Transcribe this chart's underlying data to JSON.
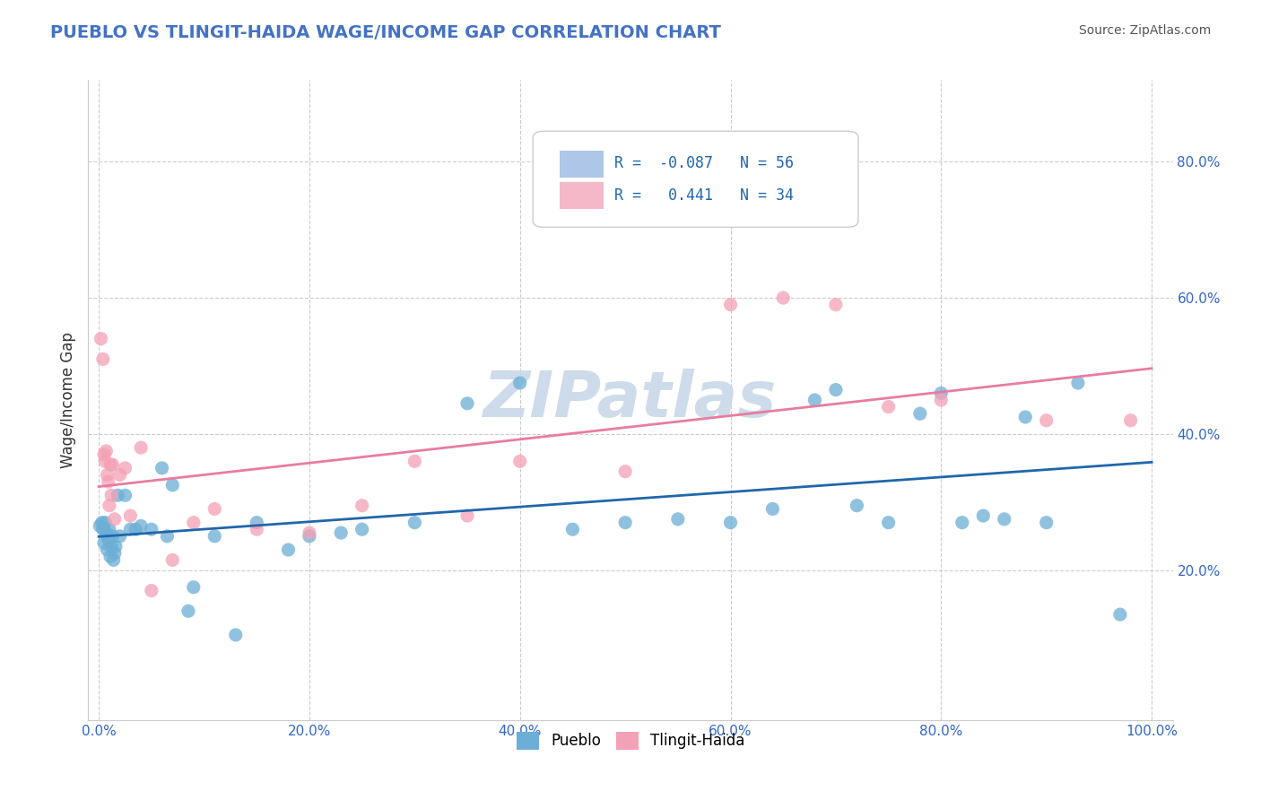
{
  "title": "PUEBLO VS TLINGIT-HAIDA WAGE/INCOME GAP CORRELATION CHART",
  "source": "Source: ZipAtlas.com",
  "xlabel": "",
  "ylabel": "Wage/Income Gap",
  "pueblo_R": -0.087,
  "pueblo_N": 56,
  "tlingit_R": 0.441,
  "tlingit_N": 34,
  "pueblo_color": "#6baed6",
  "tlingit_color": "#f4a0b5",
  "pueblo_line_color": "#2166ac",
  "tlingit_line_color": "#e87ca0",
  "watermark_color": "#c8d8e8",
  "background_color": "#ffffff",
  "grid_color": "#cccccc",
  "title_color": "#4472c4",
  "pueblo_x": [
    0.001,
    0.003,
    0.004,
    0.005,
    0.006,
    0.007,
    0.008,
    0.008,
    0.009,
    0.01,
    0.011,
    0.012,
    0.013,
    0.014,
    0.015,
    0.016,
    0.018,
    0.02,
    0.025,
    0.03,
    0.035,
    0.04,
    0.05,
    0.06,
    0.065,
    0.07,
    0.085,
    0.09,
    0.11,
    0.13,
    0.15,
    0.18,
    0.2,
    0.23,
    0.25,
    0.3,
    0.35,
    0.4,
    0.45,
    0.5,
    0.55,
    0.6,
    0.64,
    0.68,
    0.7,
    0.72,
    0.75,
    0.78,
    0.8,
    0.82,
    0.84,
    0.86,
    0.88,
    0.9,
    0.93,
    0.97
  ],
  "pueblo_y": [
    0.265,
    0.27,
    0.26,
    0.24,
    0.27,
    0.255,
    0.25,
    0.23,
    0.245,
    0.26,
    0.22,
    0.235,
    0.25,
    0.215,
    0.225,
    0.235,
    0.31,
    0.25,
    0.31,
    0.26,
    0.26,
    0.265,
    0.26,
    0.35,
    0.25,
    0.325,
    0.14,
    0.175,
    0.25,
    0.105,
    0.27,
    0.23,
    0.25,
    0.255,
    0.26,
    0.27,
    0.445,
    0.475,
    0.26,
    0.27,
    0.275,
    0.27,
    0.29,
    0.45,
    0.465,
    0.295,
    0.27,
    0.43,
    0.46,
    0.27,
    0.28,
    0.275,
    0.425,
    0.27,
    0.475,
    0.135
  ],
  "tlingit_x": [
    0.002,
    0.004,
    0.005,
    0.006,
    0.007,
    0.008,
    0.009,
    0.01,
    0.011,
    0.012,
    0.013,
    0.015,
    0.02,
    0.025,
    0.03,
    0.04,
    0.05,
    0.07,
    0.09,
    0.11,
    0.15,
    0.2,
    0.25,
    0.3,
    0.35,
    0.4,
    0.5,
    0.6,
    0.65,
    0.7,
    0.75,
    0.8,
    0.9,
    0.98
  ],
  "tlingit_y": [
    0.54,
    0.51,
    0.37,
    0.36,
    0.375,
    0.34,
    0.33,
    0.295,
    0.355,
    0.31,
    0.355,
    0.275,
    0.34,
    0.35,
    0.28,
    0.38,
    0.17,
    0.215,
    0.27,
    0.29,
    0.26,
    0.255,
    0.295,
    0.36,
    0.28,
    0.36,
    0.345,
    0.59,
    0.6,
    0.59,
    0.44,
    0.45,
    0.42,
    0.42
  ],
  "xlim": [
    -0.01,
    1.02
  ],
  "ylim": [
    -0.02,
    0.92
  ],
  "xticks": [
    0.0,
    0.2,
    0.4,
    0.6,
    0.8,
    1.0
  ],
  "xticklabels": [
    "0.0%",
    "20.0%",
    "40.0%",
    "60.0%",
    "80.0%",
    "100.0%"
  ],
  "yticks": [
    0.0,
    0.2,
    0.4,
    0.6,
    0.8
  ],
  "yticklabels": [
    "",
    "20.0%",
    "40.0%",
    "60.0%",
    "80.0%"
  ],
  "legend_labels": [
    "Pueblo",
    "Tlingit-Haida"
  ],
  "legend_patch_colors": [
    "#aec6e8",
    "#f4b8c8"
  ]
}
